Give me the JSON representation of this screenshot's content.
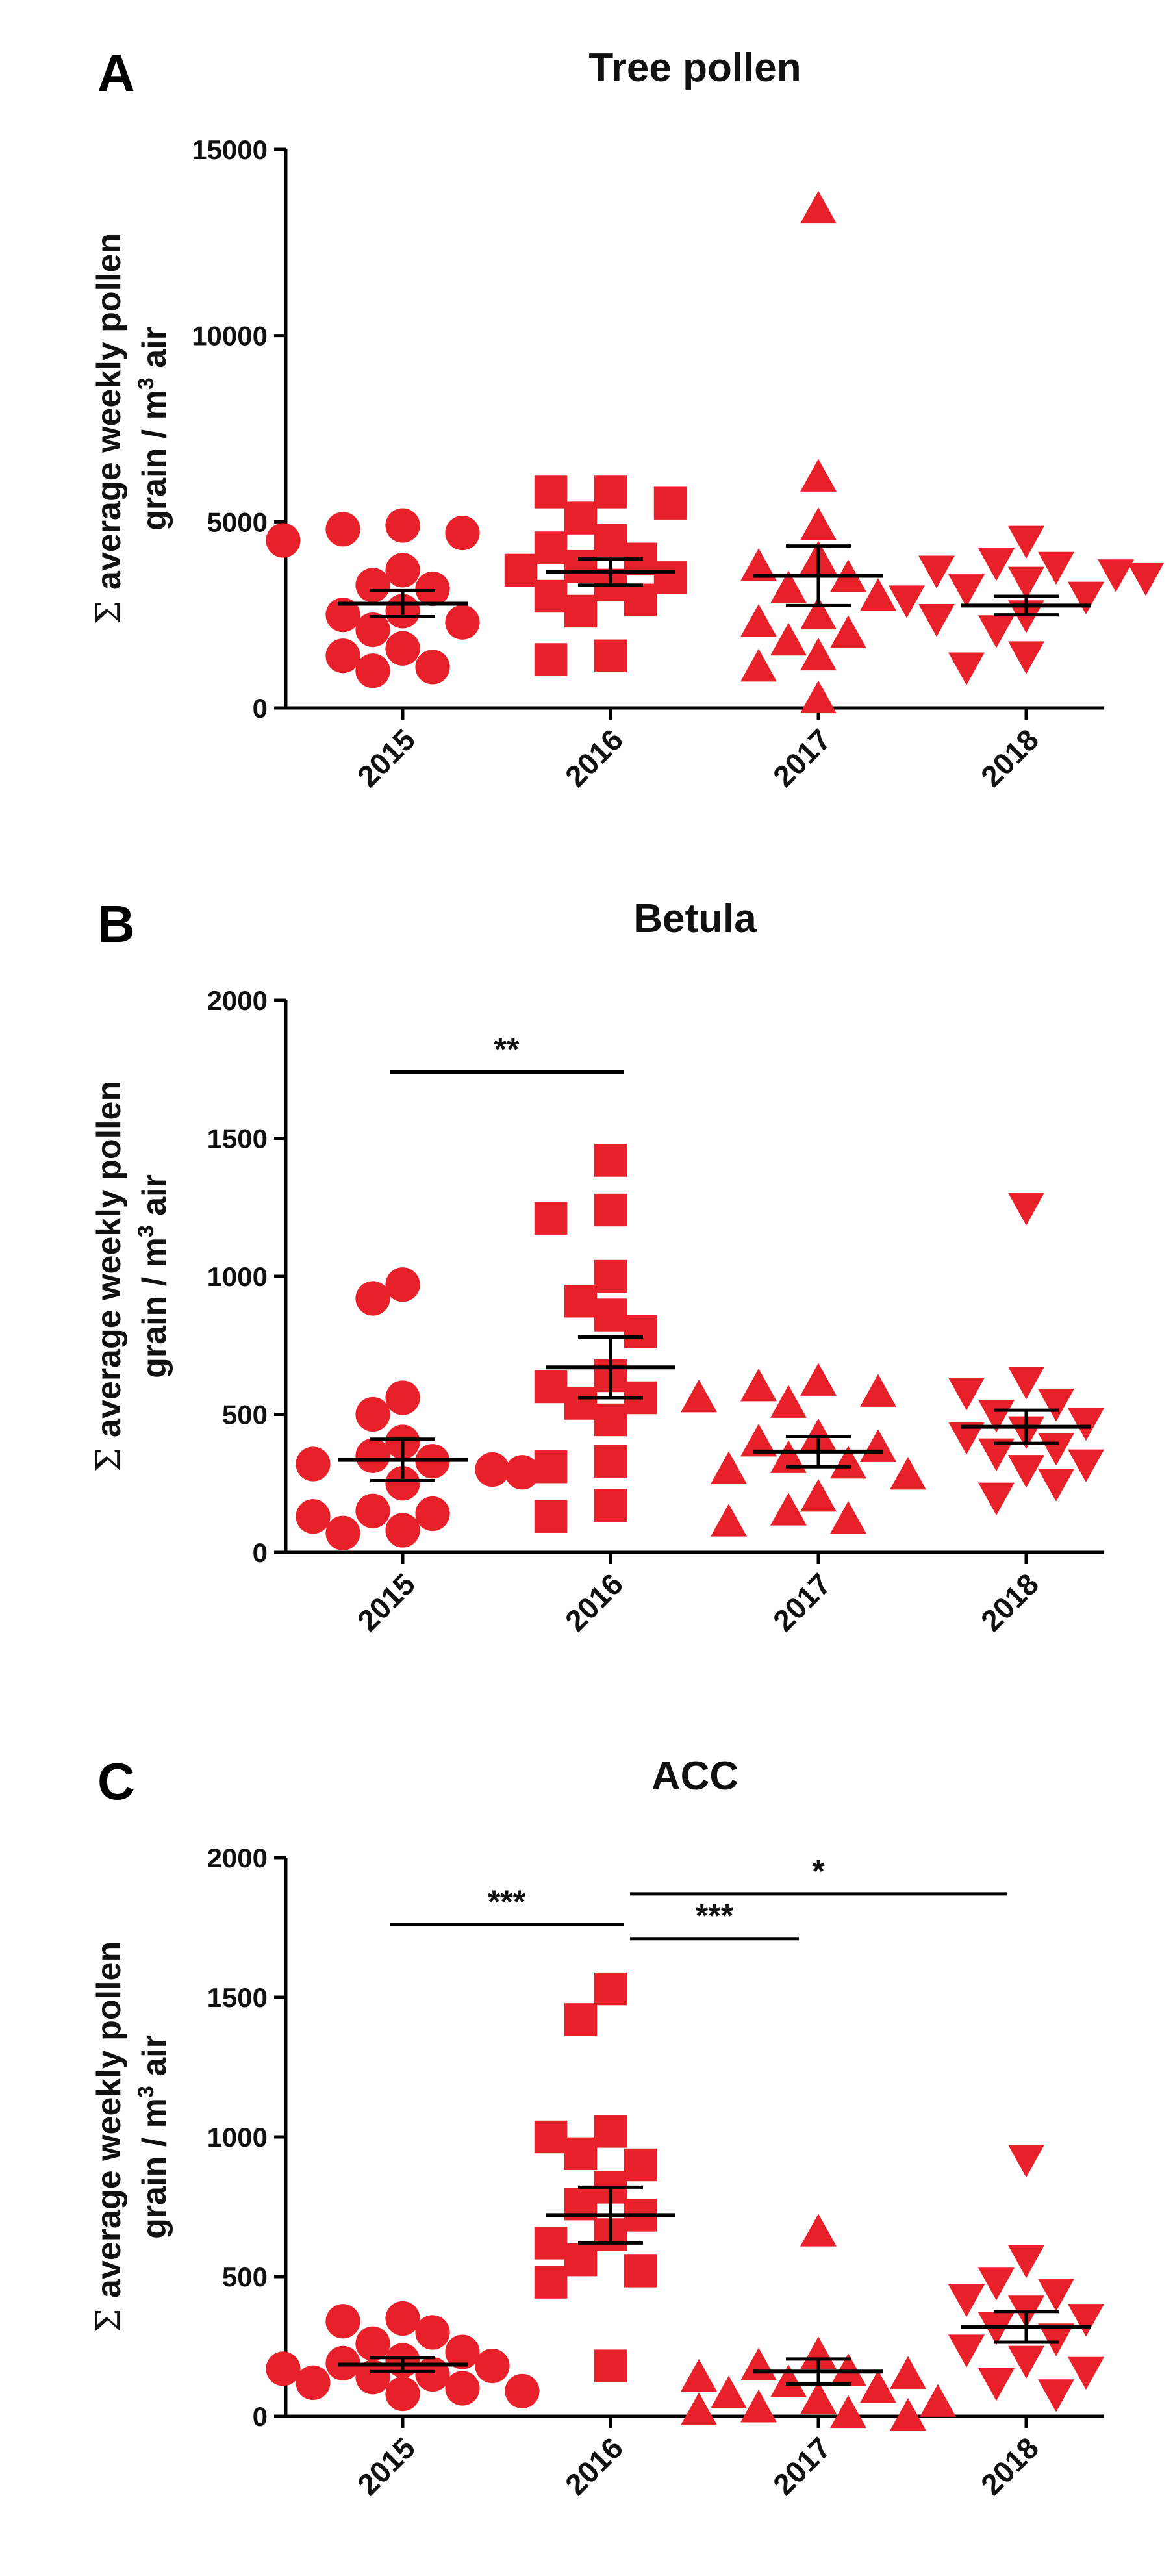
{
  "chart_data": [
    {
      "type": "scatter",
      "panel": "A",
      "title": "Tree pollen",
      "ylabel": "Σ average weekly pollen grain / m³ air",
      "ylabel_parts": {
        "sigma": "Σ",
        "line1": "average weekly pollen",
        "line2a": "grain / m",
        "sup": "3",
        "line2b": " air"
      },
      "ylim": [
        0,
        15000
      ],
      "yticks": [
        0,
        5000,
        10000,
        15000
      ],
      "categories": [
        "2015",
        "2016",
        "2017",
        "2018"
      ],
      "marker_color": "#e8202a",
      "series": [
        {
          "name": "2015",
          "marker": "circle",
          "mean": 2800,
          "sem": 350,
          "values": [
            4900,
            4800,
            4700,
            4500,
            3700,
            3300,
            3200,
            2600,
            2500,
            2300,
            2100,
            1600,
            1400,
            1100,
            1000
          ]
        },
        {
          "name": "2016",
          "marker": "square",
          "mean": 3650,
          "sem": 350,
          "values": [
            5800,
            5800,
            5500,
            5100,
            4500,
            4300,
            4000,
            3800,
            3700,
            3500,
            3300,
            3000,
            2900,
            2600,
            1400,
            1300
          ]
        },
        {
          "name": "2017",
          "marker": "triangle-up",
          "mean": 3550,
          "sem": 800,
          "values": [
            13400,
            6200,
            4900,
            4000,
            3800,
            3500,
            3200,
            3000,
            2500,
            2300,
            2000,
            1800,
            1400,
            1100,
            250
          ]
        },
        {
          "name": "2018",
          "marker": "triangle-down",
          "mean": 2750,
          "sem": 250,
          "values": [
            4500,
            3900,
            3800,
            3700,
            3600,
            3500,
            3400,
            3200,
            3000,
            2900,
            2500,
            2400,
            2100,
            1400,
            1100
          ]
        }
      ],
      "significance": []
    },
    {
      "type": "scatter",
      "panel": "B",
      "title": "Betula",
      "ylabel": "Σ average weekly pollen grain / m³ air",
      "ylabel_parts": {
        "sigma": "Σ",
        "line1": "average weekly pollen",
        "line2a": "grain / m",
        "sup": "3",
        "line2b": " air"
      },
      "ylim": [
        0,
        2000
      ],
      "yticks": [
        0,
        500,
        1000,
        1500,
        2000
      ],
      "categories": [
        "2015",
        "2016",
        "2017",
        "2018"
      ],
      "marker_color": "#e8202a",
      "series": [
        {
          "name": "2015",
          "marker": "circle",
          "mean": 335,
          "sem": 75,
          "values": [
            970,
            920,
            560,
            500,
            400,
            350,
            330,
            320,
            300,
            290,
            250,
            150,
            140,
            130,
            80,
            70
          ]
        },
        {
          "name": "2016",
          "marker": "square",
          "mean": 670,
          "sem": 110,
          "values": [
            1420,
            1240,
            1210,
            1000,
            910,
            860,
            800,
            640,
            600,
            560,
            540,
            480,
            330,
            310,
            170,
            130
          ]
        },
        {
          "name": "2017",
          "marker": "triangle-up",
          "mean": 365,
          "sem": 55,
          "values": [
            620,
            600,
            580,
            560,
            540,
            420,
            400,
            380,
            340,
            320,
            300,
            280,
            200,
            150,
            120,
            110
          ]
        },
        {
          "name": "2018",
          "marker": "triangle-down",
          "mean": 455,
          "sem": 60,
          "values": [
            1250,
            620,
            580,
            540,
            500,
            470,
            440,
            420,
            380,
            360,
            320,
            300,
            250,
            200
          ]
        }
      ],
      "significance": [
        {
          "from": 0,
          "to": 1,
          "label": "**",
          "y": 1740
        }
      ]
    },
    {
      "type": "scatter",
      "panel": "C",
      "title": "ACC",
      "ylabel": "Σ average weekly pollen grain / m³ air",
      "ylabel_parts": {
        "sigma": "Σ",
        "line1": "average weekly pollen",
        "line2a": "grain / m",
        "sup": "3",
        "line2b": " air"
      },
      "ylim": [
        0,
        2000
      ],
      "yticks": [
        0,
        500,
        1000,
        1500,
        2000
      ],
      "categories": [
        "2015",
        "2016",
        "2017",
        "2018"
      ],
      "marker_color": "#e8202a",
      "series": [
        {
          "name": "2015",
          "marker": "circle",
          "mean": 185,
          "sem": 25,
          "values": [
            350,
            340,
            300,
            260,
            230,
            200,
            190,
            180,
            170,
            150,
            140,
            120,
            100,
            90,
            80
          ]
        },
        {
          "name": "2016",
          "marker": "square",
          "mean": 720,
          "sem": 100,
          "values": [
            1530,
            1420,
            1020,
            1000,
            940,
            900,
            820,
            760,
            720,
            650,
            620,
            560,
            520,
            480,
            180
          ]
        },
        {
          "name": "2017",
          "marker": "triangle-up",
          "mean": 160,
          "sem": 45,
          "values": [
            660,
            220,
            180,
            160,
            150,
            140,
            120,
            100,
            80,
            60,
            50,
            30,
            20,
            10,
            0
          ]
        },
        {
          "name": "2018",
          "marker": "triangle-down",
          "mean": 320,
          "sem": 55,
          "values": [
            920,
            560,
            480,
            440,
            420,
            380,
            350,
            320,
            280,
            240,
            200,
            160,
            120,
            80
          ]
        }
      ],
      "significance": [
        {
          "from": 0,
          "to": 1,
          "label": "***",
          "y": 1760
        },
        {
          "from": 1,
          "to": 2,
          "label": "***",
          "y": 1710
        },
        {
          "from": 1,
          "to": 3,
          "label": "*",
          "y": 1870
        }
      ]
    }
  ]
}
